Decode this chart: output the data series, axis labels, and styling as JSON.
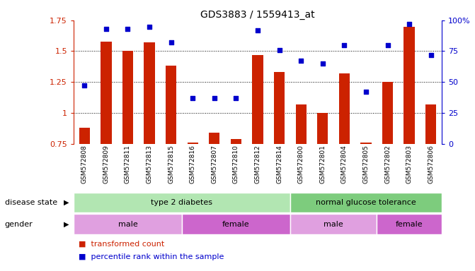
{
  "title": "GDS3883 / 1559413_at",
  "samples": [
    "GSM572808",
    "GSM572809",
    "GSM572811",
    "GSM572813",
    "GSM572815",
    "GSM572816",
    "GSM572807",
    "GSM572810",
    "GSM572812",
    "GSM572814",
    "GSM572800",
    "GSM572801",
    "GSM572804",
    "GSM572805",
    "GSM572802",
    "GSM572803",
    "GSM572806"
  ],
  "bar_values": [
    0.88,
    1.58,
    1.5,
    1.57,
    1.38,
    0.76,
    0.84,
    0.79,
    1.47,
    1.33,
    1.07,
    1.0,
    1.32,
    0.76,
    1.25,
    1.7,
    1.07
  ],
  "dot_values": [
    47,
    93,
    93,
    95,
    82,
    37,
    37,
    37,
    92,
    76,
    67,
    65,
    80,
    42,
    80,
    97,
    72
  ],
  "bar_color": "#cc2200",
  "dot_color": "#0000cc",
  "ylim_left": [
    0.75,
    1.75
  ],
  "ylim_right": [
    0,
    100
  ],
  "yticks_left": [
    0.75,
    1.0,
    1.25,
    1.5,
    1.75
  ],
  "yticks_right": [
    0,
    25,
    50,
    75,
    100
  ],
  "ytick_labels_left": [
    "0.75",
    "1",
    "1.25",
    "1.5",
    "1.75"
  ],
  "ytick_labels_right": [
    "0",
    "25",
    "50",
    "75",
    "100%"
  ],
  "grid_values": [
    1.0,
    1.25,
    1.5
  ],
  "disease_state": [
    {
      "label": "type 2 diabetes",
      "start": 0,
      "end": 9,
      "color": "#b2e6b2"
    },
    {
      "label": "normal glucose tolerance",
      "start": 10,
      "end": 16,
      "color": "#7dcc7d"
    }
  ],
  "gender": [
    {
      "label": "male",
      "start": 0,
      "end": 4,
      "color": "#e0a0e0"
    },
    {
      "label": "female",
      "start": 5,
      "end": 9,
      "color": "#cc66cc"
    },
    {
      "label": "male",
      "start": 10,
      "end": 13,
      "color": "#e0a0e0"
    },
    {
      "label": "female",
      "start": 14,
      "end": 16,
      "color": "#cc66cc"
    }
  ],
  "legend_items": [
    {
      "label": "transformed count",
      "color": "#cc2200"
    },
    {
      "label": "percentile rank within the sample",
      "color": "#0000cc"
    }
  ],
  "bar_width": 0.5,
  "background_color": "#ffffff",
  "label_row1": "disease state",
  "label_row2": "gender",
  "xtick_bg": "#d0d0d0"
}
